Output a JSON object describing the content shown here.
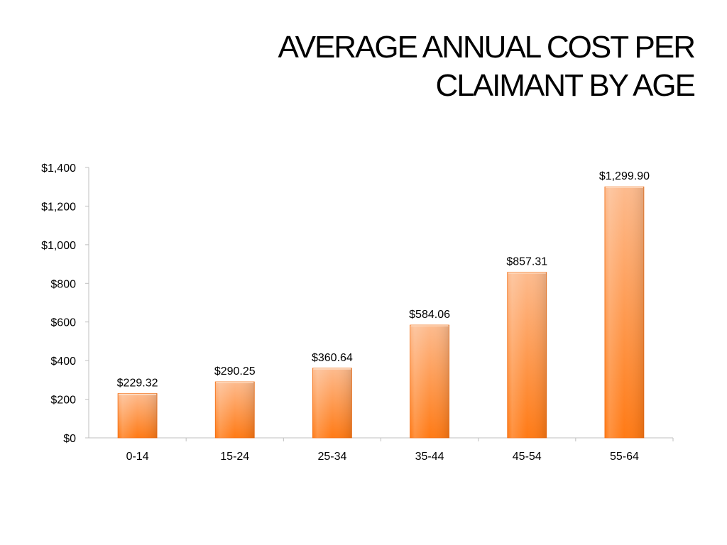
{
  "title": {
    "line1": "AVERAGE ANNUAL COST PER",
    "line2": "CLAIMANT BY AGE"
  },
  "chart_data": {
    "type": "bar",
    "title": "AVERAGE ANNUAL COST PER CLAIMANT BY AGE",
    "categories": [
      "0-14",
      "15-24",
      "25-34",
      "35-44",
      "45-54",
      "55-64"
    ],
    "values": [
      229.32,
      290.25,
      360.64,
      584.06,
      857.31,
      1299.9
    ],
    "data_labels": [
      "$229.32",
      "$290.25",
      "$360.64",
      "$584.06",
      "$857.31",
      "$1,299.90"
    ],
    "ylim": [
      0,
      1400
    ],
    "yticks": [
      0,
      200,
      400,
      600,
      800,
      1000,
      1200,
      1400
    ],
    "ytick_labels": [
      "$0",
      "$200",
      "$400",
      "$600",
      "$800",
      "$1,000",
      "$1,200",
      "$1,400"
    ],
    "xlabel": "",
    "ylabel": "",
    "grid": false,
    "legend": "none",
    "colors": {
      "bar_top": "#FDBB8E",
      "bar_bottom": "#FF7A15",
      "bar_edge": "#F26B0F",
      "axis": "#BFBFBF"
    }
  }
}
